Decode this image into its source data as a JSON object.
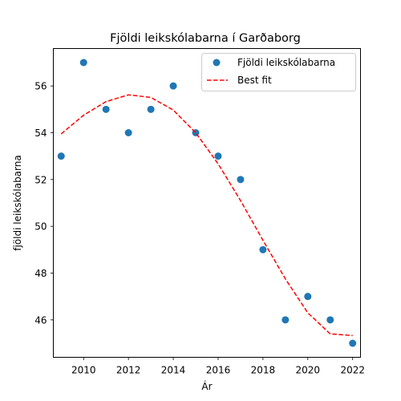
{
  "chart_data": {
    "type": "scatter",
    "title": "Fjöldi leikskólabarna í Garðaborg",
    "xlabel": "Ár",
    "ylabel": "fjöldi leikskólabarna",
    "xlim": [
      2008.65,
      2022.35
    ],
    "ylim": [
      44.4,
      57.6
    ],
    "xticks": [
      2010,
      2012,
      2014,
      2016,
      2018,
      2020,
      2022
    ],
    "yticks": [
      46,
      48,
      50,
      52,
      54,
      56
    ],
    "grid": false,
    "legend_position": "top-right",
    "series": [
      {
        "name": "Fjöldi leikskólabarna",
        "kind": "scatter",
        "color": "#1f77b4",
        "x": [
          2009,
          2010,
          2011,
          2012,
          2013,
          2014,
          2015,
          2016,
          2017,
          2018,
          2019,
          2020,
          2021,
          2022
        ],
        "y": [
          53,
          57,
          55,
          54,
          55,
          56,
          54,
          53,
          52,
          49,
          46,
          47,
          46,
          45
        ]
      },
      {
        "name": "Best fit",
        "kind": "line",
        "style": "dashed",
        "color": "#ff0000",
        "x": [
          2009,
          2010,
          2011,
          2012,
          2013,
          2014,
          2015,
          2016,
          2017,
          2018,
          2019,
          2020,
          2021,
          2022
        ],
        "y": [
          53.95,
          54.75,
          55.33,
          55.62,
          55.51,
          54.97,
          54.0,
          52.67,
          51.1,
          49.4,
          47.75,
          46.3,
          45.4,
          45.33
        ]
      }
    ]
  }
}
